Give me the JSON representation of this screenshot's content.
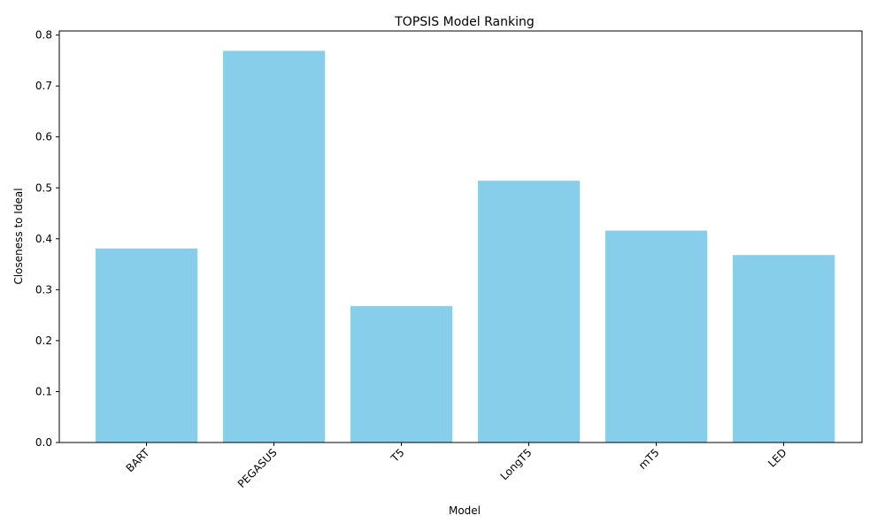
{
  "chart_data": {
    "type": "bar",
    "title": "TOPSIS Model Ranking",
    "xlabel": "Model",
    "ylabel": "Closeness to Ideal",
    "categories": [
      "BART",
      "PEGASUS",
      "T5",
      "LongT5",
      "mT5",
      "LED"
    ],
    "values": [
      0.381,
      0.769,
      0.268,
      0.514,
      0.416,
      0.368
    ],
    "ylim": [
      0,
      0.808
    ],
    "yticks": [
      "0.0",
      "0.1",
      "0.2",
      "0.3",
      "0.4",
      "0.5",
      "0.6",
      "0.7",
      "0.8"
    ],
    "bar_color": "#87ceeb",
    "grid": false,
    "xtick_rotation_deg": 45
  }
}
